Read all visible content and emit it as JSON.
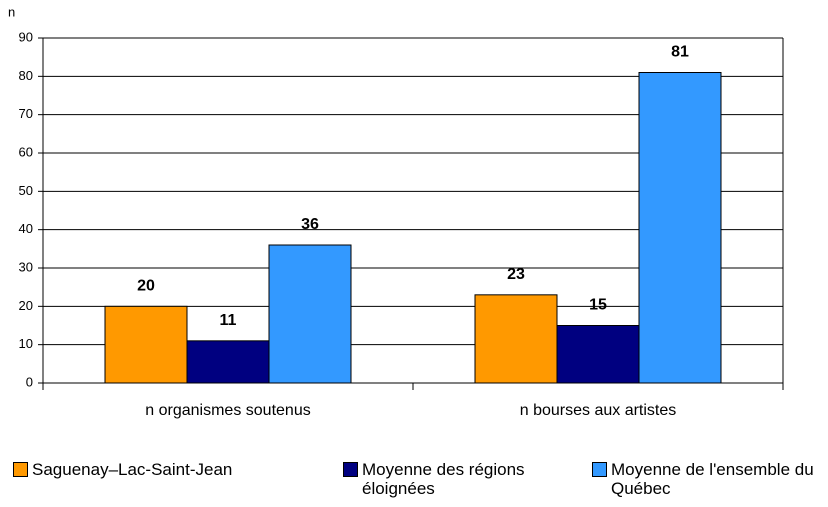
{
  "chart_data": {
    "type": "bar",
    "y_label": "n",
    "categories": [
      "n organismes soutenus",
      "n bourses aux artistes"
    ],
    "series": [
      {
        "name": "Saguenay–Lac-Saint-Jean",
        "color": "#FF9900",
        "values": [
          20,
          23
        ]
      },
      {
        "name": "Moyenne des régions éloignées",
        "color": "#000080",
        "values": [
          11,
          15
        ]
      },
      {
        "name": "Moyenne de l'ensemble du Québec",
        "color": "#3399FF",
        "values": [
          36,
          81
        ]
      }
    ],
    "ylim": [
      0,
      90
    ],
    "yticks": [
      0,
      10,
      20,
      30,
      40,
      50,
      60,
      70,
      80,
      90
    ],
    "grid": true
  }
}
